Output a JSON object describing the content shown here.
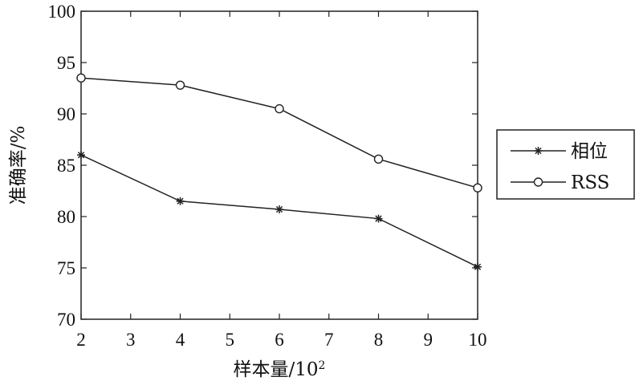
{
  "chart_data": {
    "type": "line",
    "xlabel": "样本量/10",
    "xlabel_sup": "2",
    "ylabel": "准确率/%",
    "xlim": [
      2,
      10
    ],
    "ylim": [
      70,
      100
    ],
    "x_ticks": [
      2,
      3,
      4,
      5,
      6,
      7,
      8,
      9,
      10
    ],
    "y_ticks": [
      70,
      75,
      80,
      85,
      90,
      95,
      100
    ],
    "grid": false,
    "legend_position": "right",
    "x": [
      2,
      4,
      6,
      8,
      10
    ],
    "series": [
      {
        "name": "相位",
        "marker": "asterisk",
        "values": [
          86.0,
          81.5,
          80.7,
          79.8,
          75.1
        ]
      },
      {
        "name": "RSS",
        "marker": "circle",
        "values": [
          93.5,
          92.8,
          90.5,
          85.6,
          82.8
        ]
      }
    ]
  }
}
